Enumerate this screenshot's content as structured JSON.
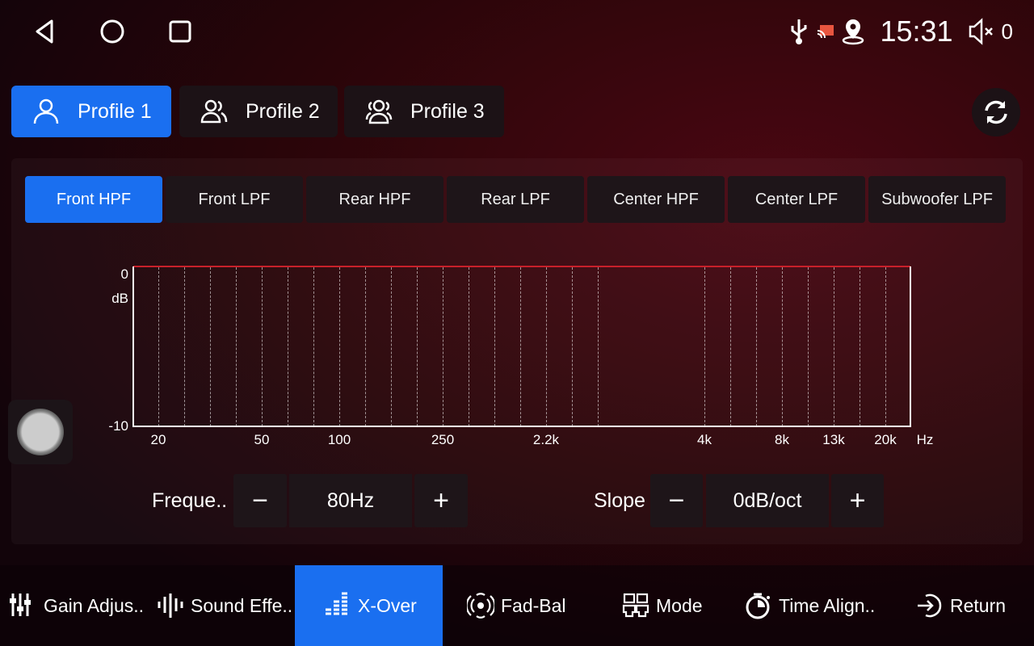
{
  "status": {
    "time": "15:31",
    "volume": "0",
    "icons": [
      "usb-icon",
      "cast-icon",
      "location-icon",
      "volume-mute-icon"
    ]
  },
  "nav": [
    "back-icon",
    "home-icon",
    "recents-icon"
  ],
  "profiles": [
    {
      "label": "Profile 1",
      "active": true
    },
    {
      "label": "Profile 2",
      "active": false
    },
    {
      "label": "Profile 3",
      "active": false
    }
  ],
  "filter_tabs": [
    {
      "label": "Front HPF",
      "active": true
    },
    {
      "label": "Front LPF"
    },
    {
      "label": "Rear HPF"
    },
    {
      "label": "Rear LPF"
    },
    {
      "label": "Center HPF"
    },
    {
      "label": "Center LPF"
    },
    {
      "label": "Subwoofer LPF"
    }
  ],
  "chart_data": {
    "type": "line",
    "y_ticks": [
      "0",
      "-10"
    ],
    "ylabel": "dB",
    "ylim": [
      -10,
      0
    ],
    "x_ticks": [
      "20",
      "50",
      "100",
      "250",
      "2.2k",
      "4k",
      "8k",
      "13k",
      "20k"
    ],
    "xlabel": "Hz",
    "series": [
      {
        "values_db": [
          0,
          0
        ]
      }
    ],
    "line_color": "#c8202a",
    "grid": "vertical-dashed"
  },
  "controls": {
    "frequency_label": "Freque..",
    "frequency_value": "80Hz",
    "slope_label": "Slope",
    "slope_value": "0dB/oct",
    "minus": "−",
    "plus": "+"
  },
  "bottom_nav": [
    {
      "label": "Gain Adjus..",
      "icon": "sliders-icon"
    },
    {
      "label": "Sound Effe..",
      "icon": "waveform-icon"
    },
    {
      "label": "X-Over",
      "icon": "equalizer-icon",
      "active": true
    },
    {
      "label": "Fad-Bal",
      "icon": "surround-icon"
    },
    {
      "label": "Mode",
      "icon": "mode-icon"
    },
    {
      "label": "Time Align..",
      "icon": "timer-icon"
    },
    {
      "label": "Return",
      "icon": "return-icon"
    }
  ],
  "accent": "#1a6ff0"
}
